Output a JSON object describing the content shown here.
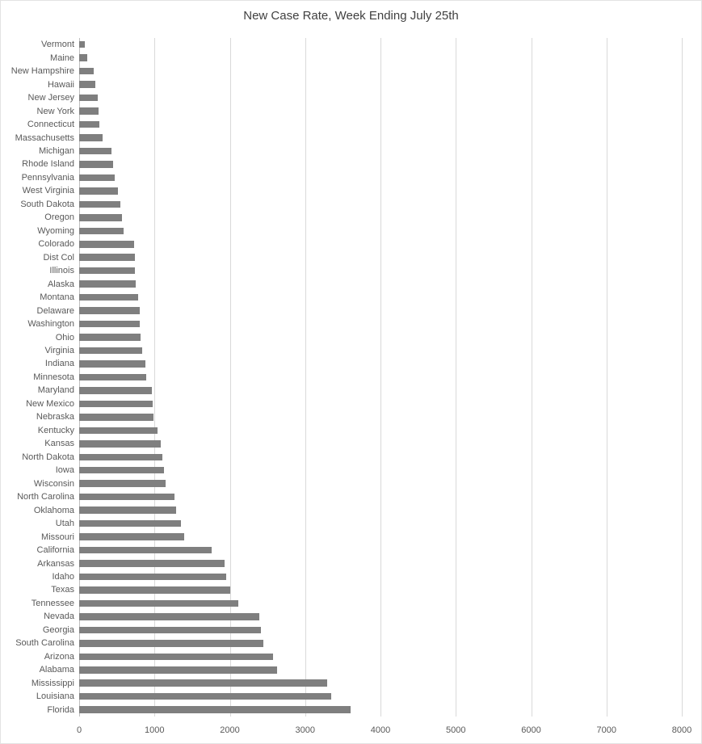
{
  "chart_data": {
    "type": "bar",
    "orientation": "horizontal",
    "title": "New Case Rate, Week Ending July 25th",
    "xlabel": "",
    "ylabel": "",
    "xlim": [
      0,
      8000
    ],
    "xticks": [
      0,
      1000,
      2000,
      3000,
      4000,
      5000,
      6000,
      7000,
      8000
    ],
    "grid": "vertical",
    "legend": "none",
    "bar_color": "#7f7f7f",
    "gridline_color": "#d9d9d9",
    "title_color": "#404040",
    "label_color": "#595959",
    "categories": [
      "Vermont",
      "Maine",
      "New Hampshire",
      "Hawaii",
      "New Jersey",
      "New York",
      "Connecticut",
      "Massachusetts",
      "Michigan",
      "Rhode Island",
      "Pennsylvania",
      "West Virginia",
      "South Dakota",
      "Oregon",
      "Wyoming",
      "Colorado",
      "Dist Col",
      "Illinois",
      "Alaska",
      "Montana",
      "Delaware",
      "Washington",
      "Ohio",
      "Virginia",
      "Indiana",
      "Minnesota",
      "Maryland",
      "New Mexico",
      "Nebraska",
      "Kentucky",
      "Kansas",
      "North Dakota",
      "Iowa",
      "Wisconsin",
      "North Carolina",
      "Oklahoma",
      "Utah",
      "Missouri",
      "California",
      "Arkansas",
      "Idaho",
      "Texas",
      "Tennessee",
      "Nevada",
      "Georgia",
      "South Carolina",
      "Arizona",
      "Alabama",
      "Mississippi",
      "Louisiana",
      "Florida"
    ],
    "values": [
      80,
      110,
      190,
      210,
      250,
      260,
      270,
      310,
      430,
      450,
      470,
      520,
      550,
      570,
      590,
      730,
      740,
      740,
      750,
      780,
      800,
      800,
      810,
      840,
      880,
      890,
      960,
      980,
      990,
      1040,
      1080,
      1100,
      1130,
      1150,
      1270,
      1290,
      1350,
      1390,
      1760,
      1930,
      1950,
      2010,
      2110,
      2390,
      2410,
      2440,
      2570,
      2630,
      3290,
      3350,
      3600
    ]
  }
}
